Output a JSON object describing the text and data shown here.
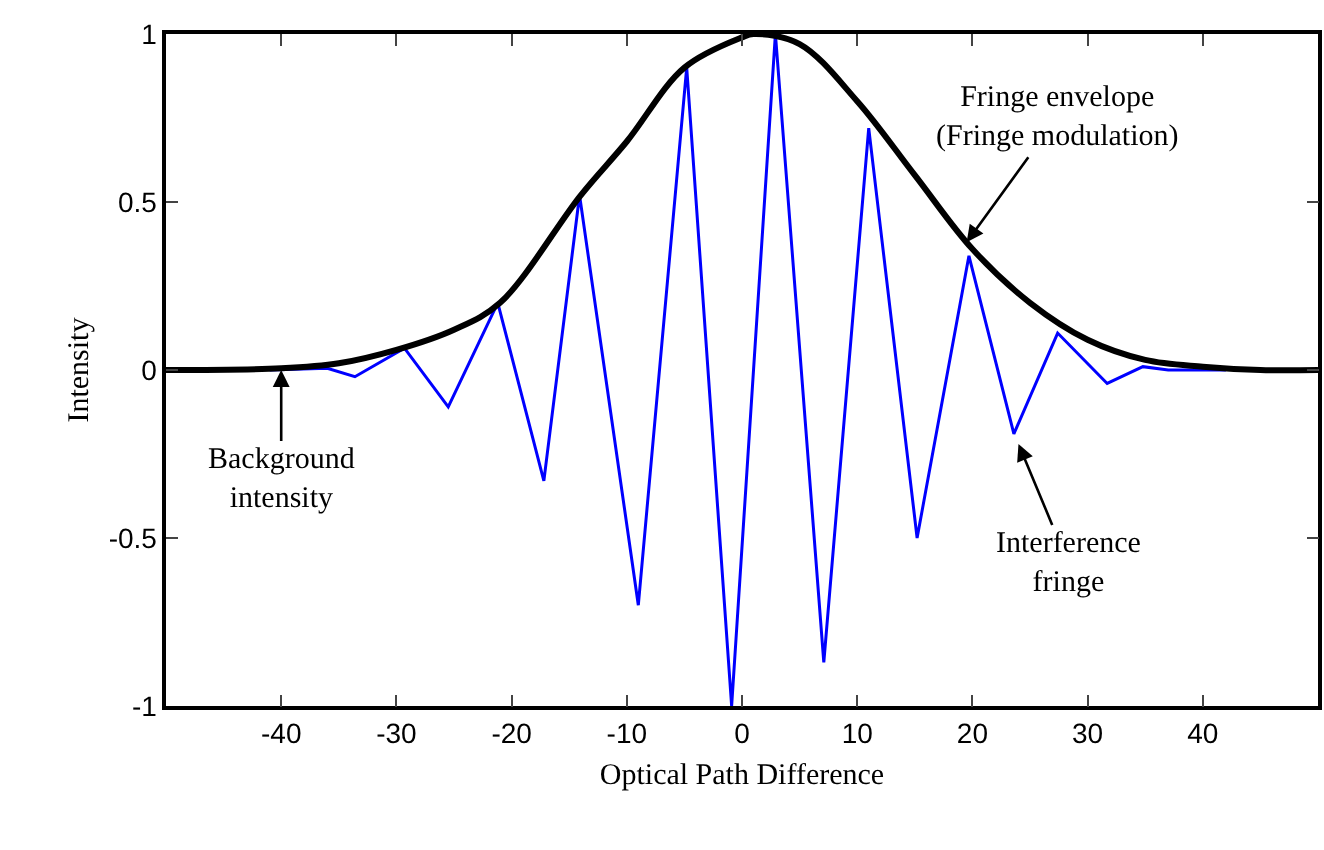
{
  "chart_data": {
    "type": "line",
    "xlabel": "Optical Path Difference",
    "ylabel": "Intensity",
    "xlim": [
      -50,
      50
    ],
    "xticks": [
      -40,
      -30,
      -20,
      -10,
      0,
      10,
      20,
      30,
      40
    ],
    "ylim": [
      -1,
      1
    ],
    "yticks": [
      -1,
      -0.5,
      0,
      0.5,
      1
    ],
    "grid": false,
    "marker": "none",
    "line_style": "solid",
    "series": [
      {
        "color": "#0000ff",
        "x": [
          -41,
          -36,
          -33.6,
          -29.3,
          -25.5,
          -21.2,
          -17.2,
          -14.1,
          -9,
          -4.8,
          -0.9,
          2.9,
          7.1,
          11,
          15.2,
          19.7,
          23.6,
          27.4,
          31.7,
          34.8,
          37,
          42
        ],
        "values": [
          0,
          0.005,
          -0.02,
          0.065,
          -0.11,
          0.2,
          -0.33,
          0.52,
          -0.7,
          0.9,
          -1,
          1,
          -0.87,
          0.72,
          -0.5,
          0.34,
          -0.19,
          0.11,
          -0.04,
          0.01,
          0,
          0
        ]
      },
      {
        "color": "#000000",
        "x": [
          -50,
          -40,
          -35,
          -30,
          -25,
          -21,
          -14,
          -10,
          -5,
          0,
          1,
          5,
          10,
          15,
          20,
          25,
          30,
          35,
          40,
          45,
          50
        ],
        "values": [
          0,
          0.005,
          0.02,
          0.06,
          0.12,
          0.2,
          0.52,
          0.68,
          0.9,
          0.99,
          1,
          0.97,
          0.8,
          0.58,
          0.36,
          0.2,
          0.09,
          0.03,
          0.01,
          0,
          0
        ]
      }
    ],
    "annotations": [
      {
        "text": "Fringe envelope\n(Fringe modulation)",
        "x": 19.5,
        "y": 0.38
      },
      {
        "text": "Interference\nfringe",
        "x": 24,
        "y": -0.22
      },
      {
        "text": "Background\nintensity",
        "x": -40,
        "y": 0
      }
    ]
  }
}
